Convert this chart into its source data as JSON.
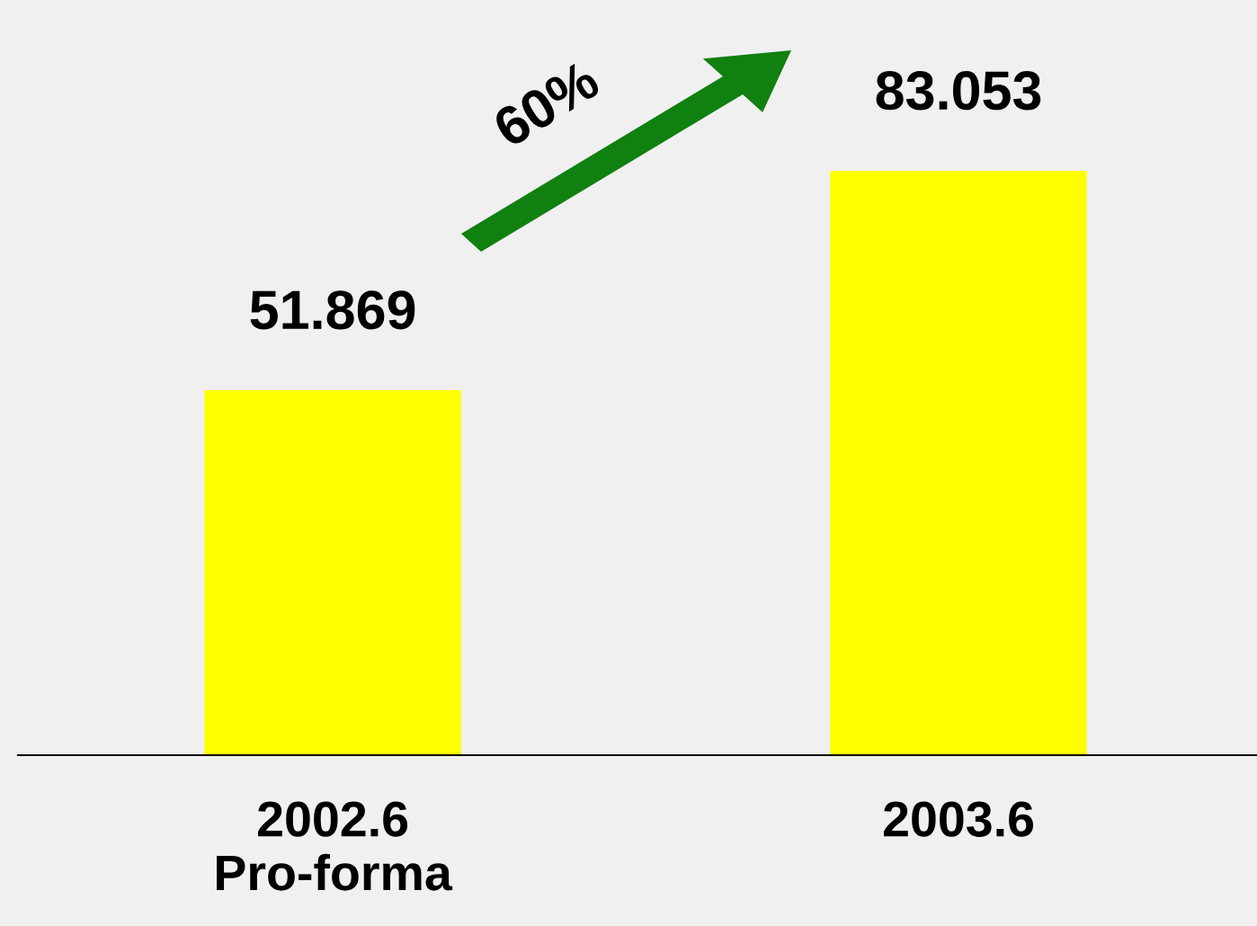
{
  "chart_data": {
    "type": "bar",
    "categories": [
      "2002.6\nPro-forma",
      "2003.6"
    ],
    "values": [
      51.869,
      83.053
    ],
    "color": "#ffff00",
    "data_labels": true,
    "annotations": [
      "60%"
    ]
  }
}
